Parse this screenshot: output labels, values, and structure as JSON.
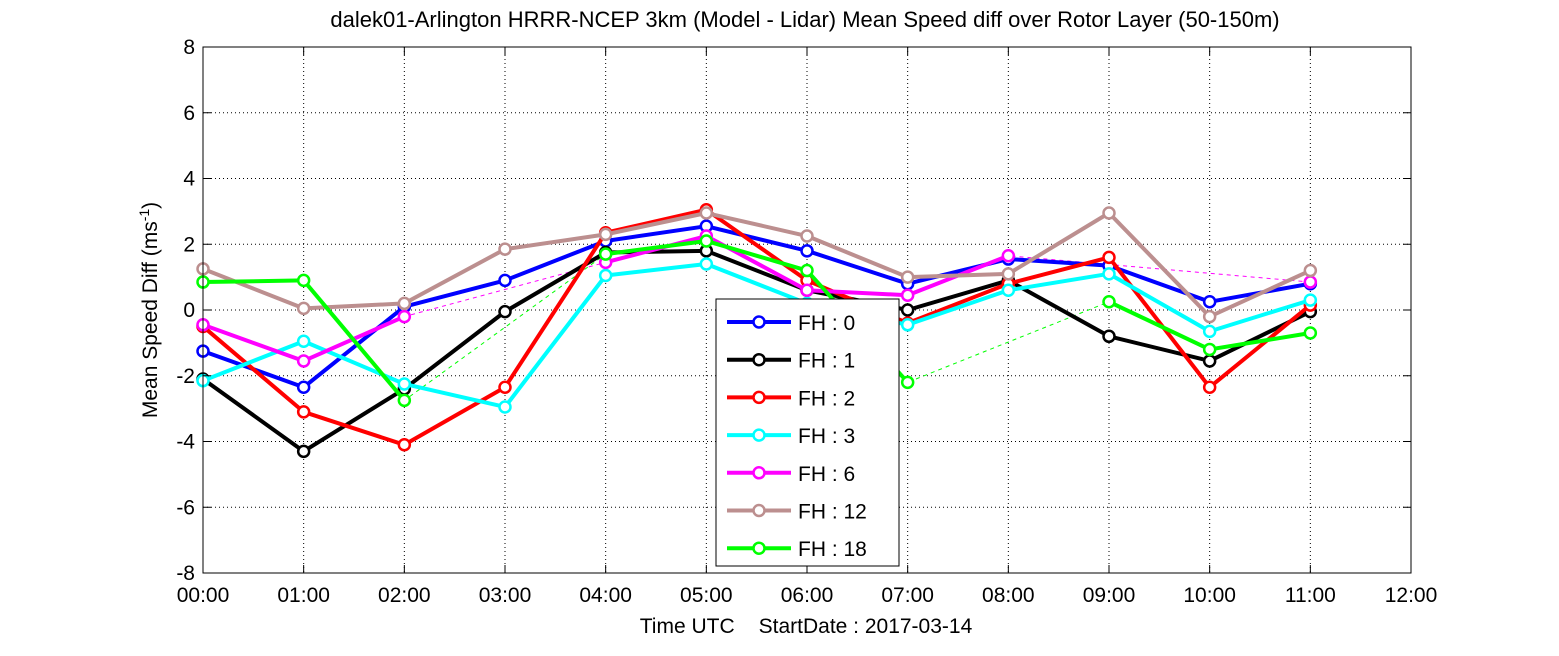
{
  "chart_data": {
    "type": "line",
    "title": "dalek01-Arlington HRRR-NCEP 3km (Model - Lidar) Mean Speed diff over Rotor Layer (50-150m)",
    "xlabel": "Time UTC",
    "xlabel_note": "StartDate : 2017-03-14",
    "ylabel_main": "Mean Speed Diff (ms",
    "ylabel_sup": "-1",
    "ylabel_close": ")",
    "xlim": [
      0,
      12
    ],
    "ylim": [
      -8,
      8
    ],
    "x_ticks": [
      0,
      1,
      2,
      3,
      4,
      5,
      6,
      7,
      8,
      9,
      10,
      11,
      12
    ],
    "x_tick_labels": [
      "00:00",
      "01:00",
      "02:00",
      "03:00",
      "04:00",
      "05:00",
      "06:00",
      "07:00",
      "08:00",
      "09:00",
      "10:00",
      "11:00",
      "12:00"
    ],
    "y_ticks": [
      -8,
      -6,
      -4,
      -2,
      0,
      2,
      4,
      6,
      8
    ],
    "y_tick_labels": [
      "-8",
      "-6",
      "-4",
      "-2",
      "0",
      "2",
      "4",
      "6",
      "8"
    ],
    "grid": true,
    "legend_position": "center",
    "x": [
      0,
      1,
      2,
      3,
      4,
      5,
      6,
      7,
      8,
      9,
      10,
      11
    ],
    "series": [
      {
        "name": "FH : 0",
        "color": "#0000ff",
        "values": [
          -1.25,
          -2.35,
          0.1,
          0.9,
          2.1,
          2.55,
          1.8,
          0.8,
          1.55,
          1.35,
          0.25,
          0.8
        ]
      },
      {
        "name": "FH : 1",
        "color": "#000000",
        "values": [
          -2.1,
          -4.3,
          -2.4,
          -0.05,
          1.75,
          1.8,
          0.6,
          0.0,
          0.9,
          -0.8,
          -1.55,
          -0.05
        ]
      },
      {
        "name": "FH : 2",
        "color": "#ff0000",
        "values": [
          -0.5,
          -3.1,
          -4.1,
          -2.35,
          2.35,
          3.05,
          0.9,
          -0.4,
          0.8,
          1.6,
          -2.35,
          0.15
        ]
      },
      {
        "name": "FH : 3",
        "color": "#00ffff",
        "values": [
          -2.15,
          -0.95,
          -2.25,
          -2.95,
          1.05,
          1.4,
          0.2,
          -0.45,
          0.6,
          1.1,
          -0.65,
          0.3
        ]
      },
      {
        "name": "FH : 6",
        "color": "#ff00ff",
        "values": [
          -0.45,
          -1.55,
          -0.2,
          null,
          1.45,
          2.25,
          0.6,
          0.45,
          1.65,
          null,
          null,
          0.85
        ]
      },
      {
        "name": "FH : 12",
        "color": "#bc8f8f",
        "values": [
          1.25,
          0.05,
          0.2,
          1.85,
          2.3,
          2.95,
          2.25,
          1.0,
          1.1,
          2.95,
          -0.2,
          1.2
        ]
      },
      {
        "name": "FH : 18",
        "color": "#00ff00",
        "values": [
          0.85,
          0.9,
          -2.75,
          null,
          1.7,
          2.1,
          1.2,
          -2.2,
          null,
          0.25,
          -1.2,
          -0.7
        ]
      }
    ]
  }
}
